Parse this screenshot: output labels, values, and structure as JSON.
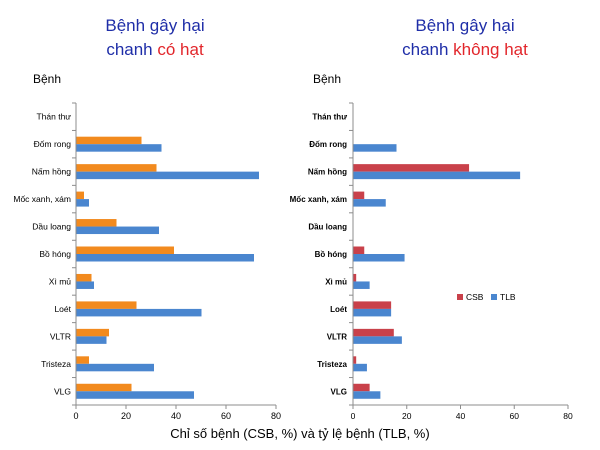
{
  "titles": [
    {
      "line1": "Bệnh gây hại",
      "line2_a": "chanh ",
      "line2_b": "có hạt"
    },
    {
      "line1": "Bệnh gây hại",
      "line2_a": "chanh ",
      "line2_b": "không hạt"
    }
  ],
  "xlabel": "Chỉ số bệnh (CSB, %) và tỷ lệ bệnh (TLB, %)",
  "colors": {
    "title_blue": "#1f2ea8",
    "title_red": "#e2262b",
    "csb_left": "#f28a1e",
    "csb_right": "#c9414a",
    "tlb": "#4a86cf",
    "axis": "#8c8c8c",
    "text": "#000000"
  },
  "chart_data": [
    {
      "type": "bar",
      "orientation": "horizontal",
      "title": "Bệnh gây hại chanh có hạt",
      "ylabel": "Bệnh",
      "categories": [
        "Thán thư",
        "Đốm rong",
        "Nấm hồng",
        "Mốc xanh, xám",
        "Dầu loang",
        "Bồ hóng",
        "Xì mủ",
        "Loét",
        "VLTR",
        "Tristeza",
        "VLG"
      ],
      "series": [
        {
          "name": "CSB",
          "color": "#f28a1e",
          "values": [
            0,
            26,
            32,
            3,
            16,
            39,
            6,
            24,
            13,
            5,
            22
          ]
        },
        {
          "name": "TLB",
          "color": "#4a86cf",
          "values": [
            0,
            34,
            73,
            5,
            33,
            71,
            7,
            50,
            12,
            31,
            47
          ]
        }
      ],
      "xlim": [
        0,
        80
      ],
      "xticks": [
        0,
        20,
        40,
        60,
        80
      ],
      "legend": "none",
      "grid": false
    },
    {
      "type": "bar",
      "orientation": "horizontal",
      "title": "Bệnh gây hại chanh không hạt",
      "ylabel": "Bệnh",
      "categories": [
        "Thán thư",
        "Đốm rong",
        "Nấm hồng",
        "Mốc xanh, xám",
        "Dầu loang",
        "Bồ hóng",
        "Xì mủ",
        "Loét",
        "VLTR",
        "Tristeza",
        "VLG"
      ],
      "series": [
        {
          "name": "CSB",
          "color": "#c9414a",
          "values": [
            0,
            0,
            43,
            4,
            0,
            4,
            1,
            14,
            15,
            1,
            6
          ]
        },
        {
          "name": "TLB",
          "color": "#4a86cf",
          "values": [
            0,
            16,
            62,
            12,
            0,
            19,
            6,
            14,
            18,
            5,
            10
          ]
        }
      ],
      "xlim": [
        0,
        80
      ],
      "xticks": [
        0,
        20,
        40,
        60,
        80
      ],
      "legend": "right",
      "grid": false
    }
  ]
}
